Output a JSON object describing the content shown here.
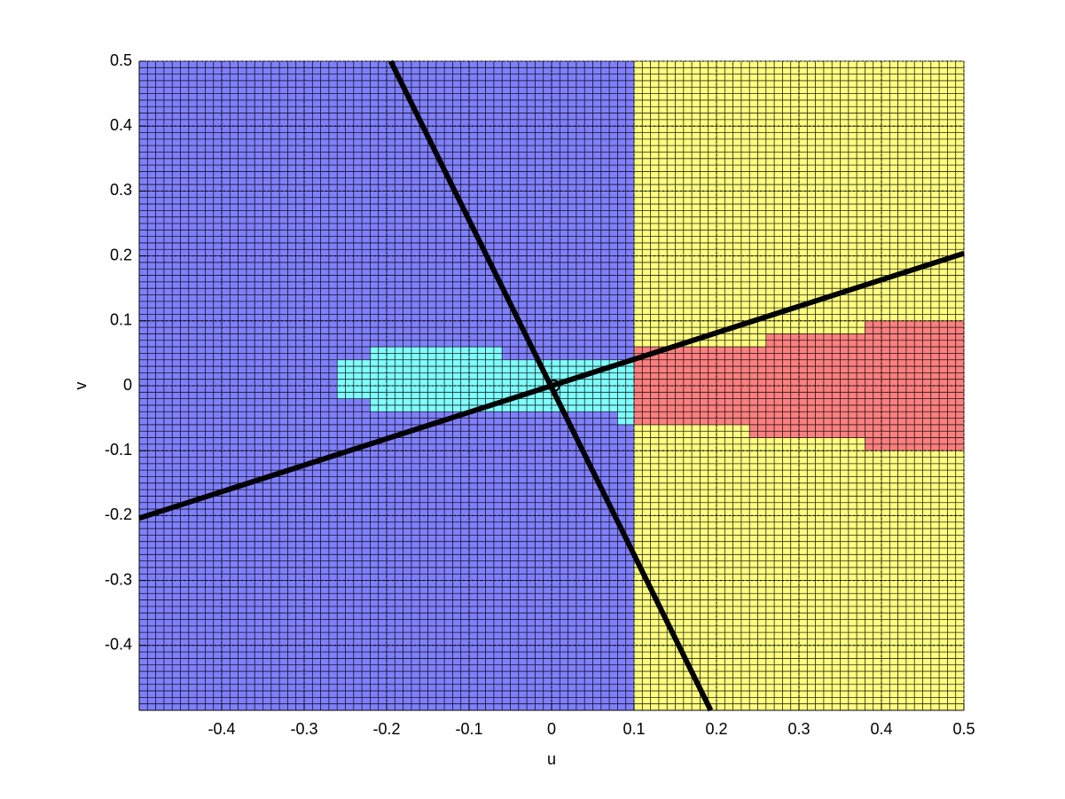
{
  "chart_data": {
    "type": "region-map",
    "xlabel": "u",
    "ylabel": "v",
    "xlim": [
      -0.5,
      0.5
    ],
    "ylim": [
      -0.5,
      0.5
    ],
    "xticks": [
      -0.4,
      -0.3,
      -0.2,
      -0.1,
      0,
      0.1,
      0.2,
      0.3,
      0.4,
      0.5
    ],
    "yticks": [
      -0.4,
      -0.3,
      -0.2,
      -0.1,
      0,
      0.1,
      0.2,
      0.3,
      0.4,
      0.5
    ],
    "grid": true,
    "cell_size": 0.01,
    "regions": [
      {
        "color": "#8080ff",
        "rects": [
          [
            -0.5,
            0.1,
            -0.5,
            0.5
          ]
        ]
      },
      {
        "color": "#ffff80",
        "rects": [
          [
            0.1,
            0.5,
            -0.5,
            0.5
          ]
        ]
      },
      {
        "color": "#80ffff",
        "rects": [
          [
            -0.26,
            -0.22,
            -0.02,
            0.04
          ],
          [
            -0.22,
            -0.06,
            -0.04,
            0.06
          ],
          [
            -0.06,
            0.08,
            -0.04,
            0.04
          ],
          [
            0.08,
            0.1,
            -0.06,
            0.04
          ]
        ]
      },
      {
        "color": "#ff8080",
        "rects": [
          [
            0.1,
            0.24,
            -0.06,
            0.06
          ],
          [
            0.24,
            0.26,
            -0.08,
            0.06
          ],
          [
            0.26,
            0.38,
            -0.08,
            0.08
          ],
          [
            0.38,
            0.5,
            -0.1,
            0.1
          ]
        ]
      }
    ],
    "lines": [
      {
        "color": "#000000",
        "x": [
          -0.5,
          0.5
        ],
        "y": [
          -0.204,
          0.204
        ]
      },
      {
        "color": "#000000",
        "x": [
          -0.195,
          0.193
        ],
        "y": [
          0.5,
          -0.5
        ]
      }
    ],
    "points": {
      "x": [
        0.003
      ],
      "y": [
        0
      ]
    }
  }
}
